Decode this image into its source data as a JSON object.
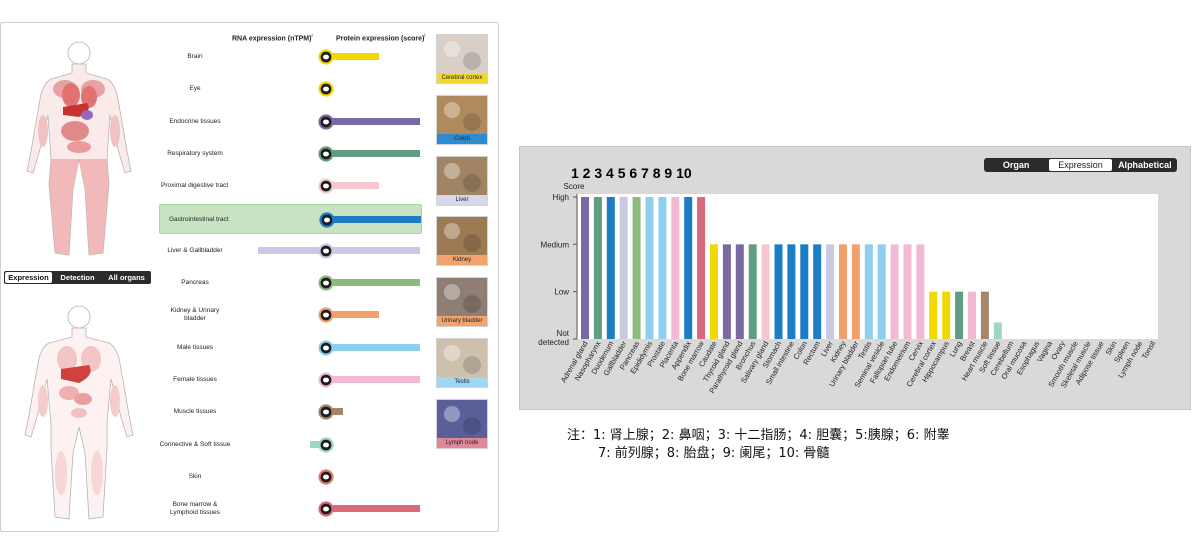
{
  "left_panel": {
    "headers": {
      "rna": "RNA expression (nTPM)",
      "protein": "Protein expression (score)",
      "info_mark": "i"
    },
    "view_tabs": [
      {
        "label": "Expression",
        "active": true
      },
      {
        "label": "Detection",
        "active": false
      },
      {
        "label": "All organs",
        "active": false
      }
    ],
    "tissues": [
      {
        "label": "Brain",
        "rna": 0,
        "protein": 0.55,
        "color": "#f0d800",
        "icon": "brain-icon"
      },
      {
        "label": "Eye",
        "rna": 0,
        "protein": 0,
        "color": "#f0d800",
        "icon": "eye-icon"
      },
      {
        "label": "Endocrine tissues",
        "rna": 0,
        "protein": 1.0,
        "color": "#7b6aa1",
        "icon": "thyroid-icon"
      },
      {
        "label": "Respiratory system",
        "rna": 0,
        "protein": 1.0,
        "color": "#5f9e80",
        "icon": "lungs-icon"
      },
      {
        "label": "Proximal digestive tract",
        "rna": 0,
        "protein": 0.55,
        "color": "#f5c8cf",
        "icon": "mouth-icon"
      },
      {
        "label": "Gastrointestinal tract",
        "rna": 0.08,
        "protein": 1.0,
        "color": "#1c7cc4",
        "icon": "stomach-icon",
        "highlight": true
      },
      {
        "label": "Liver & Gallbladder",
        "rna": 0.92,
        "protein": 1.0,
        "color": "#cac9e3",
        "icon": "liver-icon"
      },
      {
        "label": "Pancreas",
        "rna": 0,
        "protein": 1.0,
        "color": "#8bbb7e",
        "icon": "pancreas-icon"
      },
      {
        "label": "Kidney & Urinary bladder",
        "rna": 0,
        "protein": 0.55,
        "color": "#f2a06c",
        "icon": "kidney-icon"
      },
      {
        "label": "Male tissues",
        "rna": 0,
        "protein": 1.0,
        "color": "#8ecfef",
        "icon": "male-icon"
      },
      {
        "label": "Female tissues",
        "rna": 0,
        "protein": 1.0,
        "color": "#f3b9d4",
        "icon": "female-icon"
      },
      {
        "label": "Muscle tissues",
        "rna": 0,
        "protein": 0.15,
        "color": "#a6856b",
        "icon": "muscle-icon"
      },
      {
        "label": "Connective & Soft tissue",
        "rna": 0.22,
        "protein": 0,
        "color": "#9fd5c4",
        "icon": "connective-icon"
      },
      {
        "label": "Skin",
        "rna": 0,
        "protein": 0,
        "color": "#e07a6d",
        "icon": "skin-icon"
      },
      {
        "label": "Bone marrow & Lymphoid tissues",
        "rna": 0,
        "protein": 1.0,
        "color": "#d86a7c",
        "icon": "bone-marrow-icon"
      }
    ],
    "thumbnails": [
      {
        "label": "Cerebral cortex",
        "color": "#f4d82c"
      },
      {
        "label": "Colon",
        "color": "#2d8bd0"
      },
      {
        "label": "Liver",
        "color": "#d7d7ec"
      },
      {
        "label": "Kidney",
        "color": "#f2a46e"
      },
      {
        "label": "Urinary bladder",
        "color": "#f2a46e"
      },
      {
        "label": "Testis",
        "color": "#9fd6f2"
      },
      {
        "label": "Lymph node",
        "color": "#e0889a"
      }
    ]
  },
  "chart_controls": {
    "tabs": [
      {
        "label": "Organ",
        "active": false
      },
      {
        "label": "Expression",
        "active": true
      },
      {
        "label": "Alphabetical",
        "active": false
      }
    ]
  },
  "annotation": {
    "numbers": "1 2 3 4 5 6 7 8 9 10",
    "note_line1": "注：1: 肾上腺；2: 鼻咽；3: 十二指肠；4: 胆囊；5:胰腺；6: 附睾",
    "note_line2": "7: 前列腺；8: 胎盘；9: 阑尾；10: 骨髓"
  },
  "chart_data": {
    "type": "bar",
    "ylabel": "Score",
    "yticks": [
      "Not detected",
      "Low",
      "Medium",
      "High"
    ],
    "ylim": [
      0,
      3
    ],
    "categories": [
      "Adrenal gland",
      "Nasopharynx",
      "Duodenum",
      "Gallbladder",
      "Pancreas",
      "Epididymis",
      "Prostate",
      "Placenta",
      "Appendix",
      "Bone marrow",
      "Caudate",
      "Thyroid gland",
      "Parathyroid gland",
      "Bronchus",
      "Salivary gland",
      "Stomach",
      "Small intestine",
      "Colon",
      "Rectum",
      "Liver",
      "Kidney",
      "Urinary bladder",
      "Testis",
      "Seminal vesicle",
      "Fallopian tube",
      "Endometrium",
      "Cervix",
      "Cerebral cortex",
      "Hippocampus",
      "Lung",
      "Breast",
      "Heart muscle",
      "Soft tissue",
      "Cerebellum",
      "Oral mucosa",
      "Esophagus",
      "Vagina",
      "Ovary",
      "Smooth muscle",
      "Skeletal muscle",
      "Adipose tissue",
      "Skin",
      "Spleen",
      "Lymph node",
      "Tonsil"
    ],
    "values": [
      3,
      3,
      3,
      3,
      3,
      3,
      3,
      3,
      3,
      3,
      2,
      2,
      2,
      2,
      2,
      2,
      2,
      2,
      2,
      2,
      2,
      2,
      2,
      2,
      2,
      2,
      2,
      1,
      1,
      1,
      1,
      1,
      0.35,
      0,
      0,
      0,
      0,
      0,
      0,
      0,
      0,
      0,
      0,
      0,
      0
    ],
    "colors": [
      "#7b6aa1",
      "#5f9e80",
      "#1c7cc4",
      "#cac9e3",
      "#8bbb7e",
      "#8ecfef",
      "#8ecfef",
      "#f3b9d4",
      "#1c7cc4",
      "#d86a7c",
      "#f0d800",
      "#7b6aa1",
      "#7b6aa1",
      "#5f9e80",
      "#f5c8cf",
      "#1c7cc4",
      "#1c7cc4",
      "#1c7cc4",
      "#1c7cc4",
      "#cac9e3",
      "#f2a06c",
      "#f2a06c",
      "#8ecfef",
      "#8ecfef",
      "#f3b9d4",
      "#f3b9d4",
      "#f3b9d4",
      "#f0d800",
      "#f0d800",
      "#5f9e80",
      "#f3b9d4",
      "#a6856b",
      "#9fd5c4",
      "#f0d800",
      "#f5c8cf",
      "#f5c8cf",
      "#f3b9d4",
      "#f3b9d4",
      "#a6856b",
      "#a6856b",
      "#9fd5c4",
      "#e07a6d",
      "#d86a7c",
      "#d86a7c",
      "#d86a7c"
    ]
  }
}
